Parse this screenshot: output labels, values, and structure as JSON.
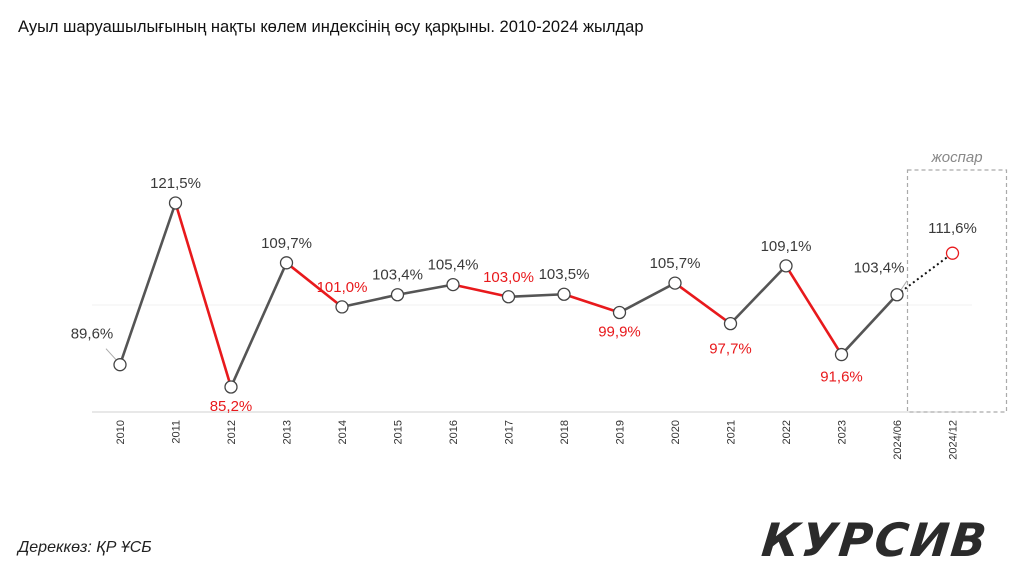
{
  "title": "Ауыл шаруашылығының нақты көлем индексінің өсу қарқыны. 2010-2024 жылдар",
  "source": "Дереккөз: ҚР ҰСБ",
  "logo": "КУРСИВ",
  "colors": {
    "line": "#555555",
    "down": "#e8191c",
    "label": "#3a3a3a",
    "plan_box": "#aaaaaa"
  },
  "chart_data": {
    "type": "line",
    "title": "Ауыл шаруашылығының нақты көлем индексінің өсу қарқыны. 2010-2024 жылдар",
    "xlabel": "",
    "ylabel": "",
    "grid": false,
    "categories": [
      "2010",
      "2011",
      "2012",
      "2013",
      "2014",
      "2015",
      "2016",
      "2017",
      "2018",
      "2019",
      "2020",
      "2021",
      "2022",
      "2023",
      "2024/06",
      "2024/12"
    ],
    "values": [
      89.6,
      121.5,
      85.2,
      109.7,
      101.0,
      103.4,
      105.4,
      103.0,
      103.5,
      99.9,
      105.7,
      97.7,
      109.1,
      91.6,
      103.4,
      111.6
    ],
    "labels": [
      "89,6%",
      "121,5%",
      "85,2%",
      "109,7%",
      "101,0%",
      "103,4%",
      "105,4%",
      "103,0%",
      "103,5%",
      "99,9%",
      "105,7%",
      "97,7%",
      "109,1%",
      "91,6%",
      "103,4%",
      "111,6%"
    ],
    "plan_label": "жоспар",
    "plan_categories": [
      "2024/12"
    ]
  }
}
